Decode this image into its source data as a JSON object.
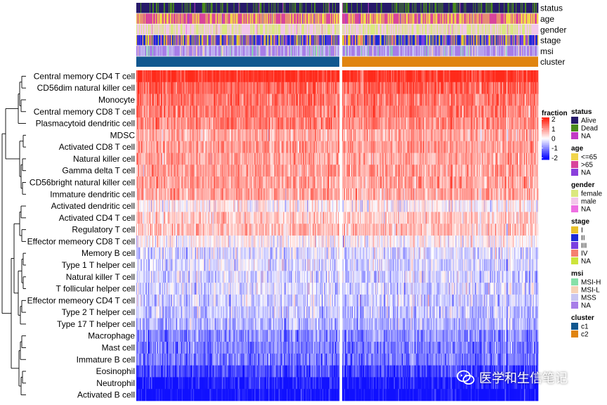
{
  "chart_data": {
    "type": "heatmap",
    "rows": [
      {
        "label": "Central memory CD4 T cell",
        "mean": 2.0
      },
      {
        "label": "CD56dim natural killer cell",
        "mean": 1.45
      },
      {
        "label": "Monocyte",
        "mean": 1.3
      },
      {
        "label": "Central memory CD8 T cell",
        "mean": 1.2
      },
      {
        "label": "Plasmacytoid dendritic cell",
        "mean": 1.1
      },
      {
        "label": "MDSC",
        "mean": 0.8
      },
      {
        "label": "Activated CD8 T cell",
        "mean": 0.9
      },
      {
        "label": "Natural killer cell",
        "mean": 0.85
      },
      {
        "label": "Gamma delta T cell",
        "mean": 0.9
      },
      {
        "label": "CD56bright natural killer cell",
        "mean": 0.85
      },
      {
        "label": "Immature dendritic cell",
        "mean": 0.8
      },
      {
        "label": "Activated dendritic cell",
        "mean": 0.1
      },
      {
        "label": "Activated CD4 T cell",
        "mean": 0.5
      },
      {
        "label": "Regulatory T cell",
        "mean": 0.55
      },
      {
        "label": "Effector memeory CD8 T cell",
        "mean": 0.1
      },
      {
        "label": "Memory B cell",
        "mean": -0.3
      },
      {
        "label": "Type 1 T helper cell",
        "mean": -0.3
      },
      {
        "label": "Natural killer T cell",
        "mean": -0.35
      },
      {
        "label": "T follicular helper cell",
        "mean": -0.35
      },
      {
        "label": "Effector memeory CD4 T cell",
        "mean": -0.4
      },
      {
        "label": "Type 2 T helper cell",
        "mean": -0.5
      },
      {
        "label": "Type 17 T helper cell",
        "mean": -0.6
      },
      {
        "label": "Macrophage",
        "mean": -1.0
      },
      {
        "label": "Mast cell",
        "mean": -1.05
      },
      {
        "label": "Immature  B cell",
        "mean": -1.15
      },
      {
        "label": "Eosinophil",
        "mean": -1.6
      },
      {
        "label": "Neutrophil",
        "mean": -2.0
      },
      {
        "label": "Activated B cell",
        "mean": -2.2
      }
    ],
    "column_split": [
      {
        "name": "c1",
        "n_samples": 290
      },
      {
        "name": "c2",
        "n_samples": 280
      }
    ],
    "color_scale": {
      "title": "fraction",
      "breaks": [
        2,
        1,
        0,
        -1,
        -2
      ],
      "tick_labels": [
        "2",
        "1",
        "0",
        "-1",
        "-2"
      ],
      "colors": [
        "#ff2a1a",
        "#ffffff",
        "#1010ff"
      ]
    },
    "annotation_tracks": [
      {
        "name": "status",
        "levels": [
          {
            "label": "Alive",
            "color": "#271a6a",
            "weight": 0.72
          },
          {
            "label": "Dead",
            "color": "#4a8a1c",
            "weight": 0.27
          },
          {
            "label": "NA",
            "color": "#c23ac5",
            "weight": 0.01
          }
        ]
      },
      {
        "name": "age",
        "levels": [
          {
            "label": "<=65",
            "color": "#f1d54a",
            "weight": 0.45
          },
          {
            "label": ">65",
            "color": "#d9449b",
            "weight": 0.53
          },
          {
            "label": "NA",
            "color": "#8a3fdc",
            "weight": 0.02
          }
        ]
      },
      {
        "name": "gender",
        "levels": [
          {
            "label": "female",
            "color": "#dbe87f",
            "weight": 0.46
          },
          {
            "label": "male",
            "color": "#f2c6ea",
            "weight": 0.53
          },
          {
            "label": "NA",
            "color": "#ee6fe2",
            "weight": 0.01
          }
        ]
      },
      {
        "name": "stage",
        "levels": [
          {
            "label": "I",
            "color": "#e7c02a",
            "weight": 0.17
          },
          {
            "label": "II",
            "color": "#1c2ad6",
            "weight": 0.38
          },
          {
            "label": "III",
            "color": "#7a3ee0",
            "weight": 0.28
          },
          {
            "label": "IV",
            "color": "#f57f70",
            "weight": 0.1
          },
          {
            "label": "NA",
            "color": "#cde43b",
            "weight": 0.07
          }
        ]
      },
      {
        "name": "msi",
        "levels": [
          {
            "label": "MSI-H",
            "color": "#86e0a8",
            "weight": 0.07
          },
          {
            "label": "MSI-L",
            "color": "#f6d2b6",
            "weight": 0.06
          },
          {
            "label": "MSS",
            "color": "#c8c6f2",
            "weight": 0.3
          },
          {
            "label": "NA",
            "color": "#a77de8",
            "weight": 0.57
          }
        ]
      },
      {
        "name": "cluster",
        "levels": [
          {
            "label": "c1",
            "color": "#11578f"
          },
          {
            "label": "c2",
            "color": "#e08410"
          }
        ]
      }
    ]
  },
  "watermark": {
    "text": "医学和生信笔记"
  }
}
